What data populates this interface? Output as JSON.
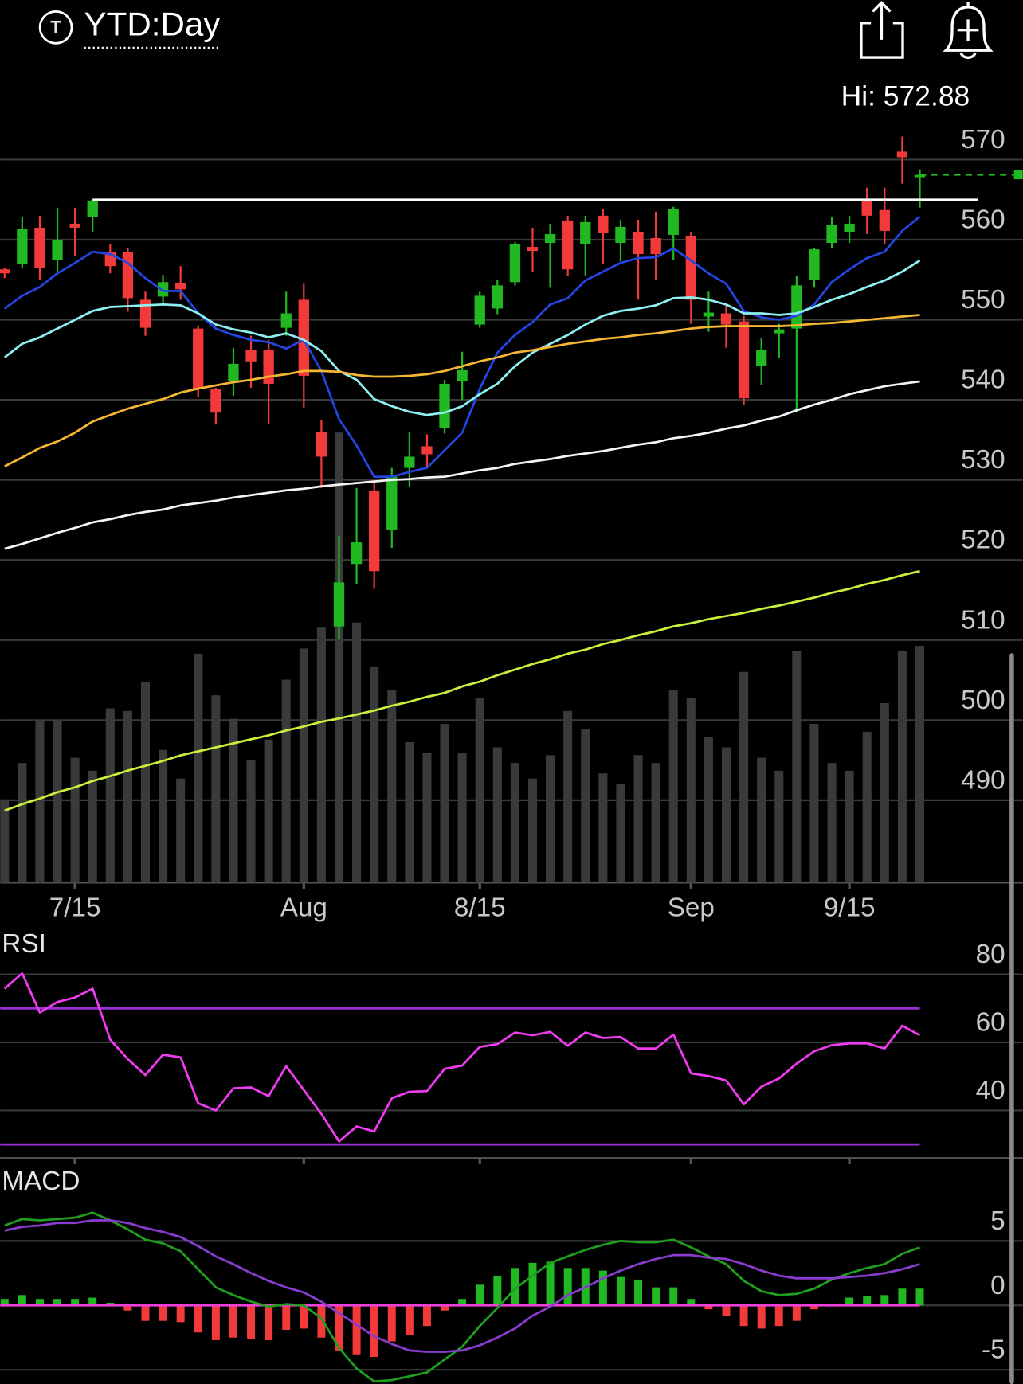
{
  "header": {
    "icon": "T",
    "title": "YTD:Day",
    "hi_label": "Hi: 572.88"
  },
  "chart_data": [
    {
      "type": "candlestick",
      "categories": [
        null,
        null,
        null,
        null,
        "7/15",
        null,
        null,
        null,
        null,
        null,
        null,
        null,
        null,
        null,
        null,
        null,
        null,
        "Aug",
        null,
        null,
        null,
        null,
        null,
        null,
        null,
        null,
        null,
        "8/15",
        null,
        null,
        null,
        null,
        null,
        null,
        null,
        null,
        null,
        null,
        null,
        "Sep",
        null,
        null,
        null,
        null,
        null,
        null,
        null,
        null,
        "9/15",
        null,
        null,
        null,
        null
      ],
      "open": [
        556.3,
        557,
        561.5,
        557.5,
        562,
        562.8,
        558.5,
        558.5,
        552.5,
        552.9,
        554.6,
        548.9,
        541.4,
        542.3,
        546.2,
        546.2,
        549,
        552.5,
        536,
        511.7,
        519.5,
        528.6,
        523.8,
        531.5,
        534.2,
        536.5,
        542.3,
        549.4,
        551.4,
        554.7,
        559.1,
        559.6,
        562.4,
        559.4,
        563,
        559.6,
        561,
        560.2,
        560.6,
        560.5,
        550.4,
        550.8,
        549.8,
        544.2,
        548.3,
        548.9,
        555,
        559.6,
        561,
        564.8,
        563.7,
        571,
        567.8
      ],
      "high": [
        556.5,
        562.8,
        563,
        564,
        564,
        565,
        559.5,
        559,
        553.5,
        555.6,
        556.7,
        549.3,
        541.5,
        546.5,
        548,
        547.5,
        553.5,
        554.5,
        537.5,
        523,
        529,
        530,
        531.5,
        536,
        535.7,
        542.5,
        546,
        553.5,
        555,
        559.7,
        561.5,
        562,
        563,
        563,
        563.8,
        562.5,
        562.5,
        563.5,
        564.1,
        561,
        553.5,
        552,
        550.5,
        547.7,
        549.5,
        555.5,
        559,
        562.8,
        563,
        566.5,
        566.5,
        572.88,
        568.8
      ],
      "low": [
        555.2,
        556.5,
        555,
        556,
        558,
        561,
        555.8,
        551,
        548,
        552,
        552.5,
        540.3,
        536.9,
        540.5,
        541.5,
        537,
        548,
        539,
        529,
        510,
        517,
        516.4,
        521.5,
        529.2,
        531.5,
        535.8,
        540,
        549,
        550.7,
        554.3,
        556,
        554,
        555.5,
        555.5,
        557,
        557.3,
        552.5,
        555,
        557.5,
        549.5,
        548.5,
        546.5,
        539.4,
        541.8,
        545.2,
        538.5,
        554,
        559,
        559.6,
        560.7,
        559.5,
        567,
        564
      ],
      "close": [
        555.8,
        561.3,
        556.5,
        560,
        561.5,
        564.9,
        556.7,
        552.7,
        549,
        554.7,
        553.8,
        541.4,
        538.4,
        544.5,
        544.8,
        542,
        550.8,
        543,
        532.9,
        517.2,
        522.2,
        518.6,
        530.4,
        532.9,
        533.2,
        542,
        543.7,
        553,
        554.3,
        559.5,
        558.6,
        560.7,
        556.3,
        562.2,
        560.8,
        561.6,
        558.2,
        558.2,
        563.8,
        552.5,
        550.9,
        549.4,
        540.2,
        546.2,
        548.8,
        554.3,
        558.8,
        561.8,
        562,
        563,
        561.1,
        570.3,
        568.1
      ],
      "up_color": "#22b822",
      "down_color": "#f23a3a",
      "volume": {
        "color": "#3a3a3a",
        "values": [
          32,
          46,
          62,
          62,
          48,
          43,
          67,
          66,
          77,
          51,
          40,
          88,
          72,
          63,
          47,
          55,
          78,
          90,
          98,
          173,
          100,
          83,
          74,
          54,
          50,
          61,
          50,
          71,
          52,
          46,
          40,
          49,
          66,
          59,
          42,
          38,
          49,
          46,
          74,
          71,
          56,
          52,
          81,
          48,
          43,
          89,
          61,
          46,
          43,
          58,
          69,
          89,
          91
        ]
      },
      "series": [
        {
          "color": "#2445e0",
          "values": [
            551.4,
            553.0,
            554.1,
            555.8,
            557.1,
            558.5,
            558.2,
            557.1,
            555.2,
            553.6,
            553.6,
            550.8,
            548.9,
            548.1,
            547.5,
            547.2,
            546.4,
            547.5,
            543.6,
            537.6,
            534.3,
            530.4,
            530.4,
            531.0,
            531.5,
            533.7,
            535.9,
            541.4,
            545.9,
            548.1,
            549.7,
            551.9,
            552.7,
            554.9,
            556.0,
            557.1,
            557.7,
            557.8,
            558.9,
            557.4,
            555.8,
            554.5,
            551.1,
            550.3,
            550.0,
            550.5,
            551.9,
            554.7,
            556.3,
            557.7,
            558.5,
            561.1,
            562.9
          ]
        },
        {
          "color": "#8ff0f0",
          "values": [
            545.3,
            547.0,
            547.8,
            548.9,
            550.0,
            551.1,
            551.6,
            551.7,
            551.8,
            551.9,
            551.8,
            550.8,
            549.4,
            548.8,
            548.4,
            547.8,
            548.3,
            547.5,
            546.1,
            543.6,
            542.5,
            540.1,
            539.2,
            538.5,
            538.1,
            538.4,
            539.2,
            540.7,
            542.0,
            544.2,
            545.9,
            547.0,
            548.1,
            549.4,
            550.5,
            551.1,
            551.4,
            551.8,
            552.7,
            552.8,
            552.5,
            551.9,
            550.8,
            550.8,
            550.6,
            550.8,
            551.6,
            552.5,
            553.2,
            554.1,
            554.9,
            556.0,
            557.4
          ]
        },
        {
          "color": "#f5b731",
          "values": [
            531.7,
            532.8,
            534.0,
            534.8,
            535.9,
            537.3,
            538.1,
            538.9,
            539.5,
            540.1,
            540.9,
            541.4,
            541.8,
            542.2,
            542.5,
            542.9,
            543.2,
            543.6,
            543.6,
            543.5,
            543.1,
            542.9,
            542.9,
            543.0,
            543.2,
            543.6,
            544.2,
            544.8,
            545.3,
            545.9,
            546.2,
            546.6,
            547.0,
            547.3,
            547.6,
            547.8,
            548.1,
            548.3,
            548.6,
            548.9,
            549.1,
            549.2,
            549.2,
            549.2,
            549.2,
            549.3,
            549.5,
            549.6,
            549.8,
            550.0,
            550.2,
            550.4,
            550.6
          ]
        },
        {
          "color": "#f4f4f4",
          "values": [
            521.4,
            522.0,
            522.7,
            523.4,
            524.0,
            524.7,
            525.1,
            525.6,
            526.0,
            526.3,
            526.8,
            527.1,
            527.4,
            527.8,
            528.1,
            528.4,
            528.7,
            528.9,
            529.2,
            529.4,
            529.6,
            529.8,
            530.0,
            530.1,
            530.3,
            530.4,
            530.8,
            531.2,
            531.5,
            532.0,
            532.3,
            532.6,
            533.0,
            533.3,
            533.6,
            534.0,
            534.4,
            534.7,
            535.2,
            535.5,
            535.9,
            536.4,
            536.8,
            537.4,
            537.9,
            538.7,
            539.4,
            540.0,
            540.7,
            541.2,
            541.7,
            542.0,
            542.3
          ]
        },
        {
          "color": "#c8f03c",
          "values": [
            488.7,
            489.5,
            490.2,
            491.0,
            491.6,
            492.4,
            493.0,
            493.7,
            494.3,
            494.9,
            495.6,
            496.1,
            496.6,
            497.1,
            497.6,
            498.1,
            498.7,
            499.2,
            499.8,
            500.2,
            500.7,
            501.2,
            501.8,
            502.3,
            502.9,
            503.4,
            504.2,
            504.8,
            505.6,
            506.3,
            507.0,
            507.6,
            508.3,
            508.8,
            509.5,
            510.0,
            510.6,
            511.1,
            511.7,
            512.1,
            512.6,
            513.0,
            513.4,
            513.9,
            514.3,
            514.8,
            515.3,
            515.9,
            516.4,
            517.0,
            517.5,
            518.1,
            518.6
          ]
        }
      ],
      "hline": 565,
      "hline_color": "#ffffff",
      "last_color": "#22b822",
      "ylim": [
        479.7,
        573.4
      ],
      "yticks": [
        490,
        500,
        510,
        520,
        530,
        540,
        550,
        560,
        570
      ],
      "grid": true
    },
    {
      "type": "line",
      "title": "RSI",
      "color": "#f03cf0",
      "values": [
        75.8,
        80.3,
        68.8,
        71.9,
        73.2,
        75.8,
        60.8,
        55.1,
        50.4,
        56.4,
        55.6,
        42.1,
        40.0,
        46.5,
        46.8,
        44.2,
        53.0,
        46.0,
        39.0,
        30.9,
        35.3,
        33.8,
        43.6,
        45.5,
        45.7,
        52.2,
        53.2,
        58.7,
        59.5,
        62.9,
        62.1,
        63.1,
        59.0,
        62.9,
        61.3,
        61.6,
        58.2,
        58.2,
        62.3,
        50.9,
        50.1,
        48.8,
        41.8,
        47.0,
        49.4,
        53.8,
        57.4,
        59.2,
        59.7,
        59.7,
        58.2,
        64.9,
        62.1
      ],
      "levels": [
        70,
        30
      ],
      "level_color": "#9a2fd6",
      "ylim": [
        26,
        91.4
      ],
      "yticks": [
        40,
        60,
        80
      ],
      "grid": true
    },
    {
      "type": "macd",
      "title": "MACD",
      "series": [
        {
          "color": "#1f9e1f",
          "values": [
            6.2,
            6.7,
            6.6,
            6.7,
            6.8,
            7.2,
            6.6,
            5.9,
            5.1,
            4.8,
            4.2,
            2.8,
            1.4,
            0.8,
            0.3,
            -0.1,
            0.1,
            0,
            -1.0,
            -3.3,
            -4.9,
            -5.9,
            -5.8,
            -5.5,
            -5.2,
            -4.2,
            -3.2,
            -1.6,
            -0.2,
            1.3,
            2.3,
            3.3,
            3.8,
            4.3,
            4.7,
            5.0,
            4.9,
            4.9,
            5.1,
            4.5,
            3.8,
            3.2,
            1.9,
            1.1,
            0.8,
            0.9,
            1.3,
            2.0,
            2.5,
            2.9,
            3.2,
            4.0,
            4.5
          ]
        },
        {
          "color": "#8a3ccf",
          "values": [
            5.8,
            6.1,
            6.2,
            6.4,
            6.4,
            6.6,
            6.6,
            6.4,
            6.0,
            5.7,
            5.3,
            4.6,
            3.8,
            3.2,
            2.5,
            1.9,
            1.4,
            1.0,
            0.3,
            -0.6,
            -1.5,
            -2.4,
            -3.0,
            -3.5,
            -3.6,
            -3.6,
            -3.5,
            -3.1,
            -2.5,
            -1.8,
            -0.8,
            -0.1,
            0.8,
            1.4,
            2.1,
            2.7,
            3.2,
            3.6,
            3.9,
            3.9,
            3.7,
            3.6,
            3.2,
            2.7,
            2.3,
            2.1,
            2.1,
            2.1,
            2.2,
            2.3,
            2.5,
            2.8,
            3.2
          ]
        }
      ],
      "histogram": {
        "up_color": "#22b822",
        "down_color": "#f23a3a",
        "values": [
          0.5,
          0.8,
          0.5,
          0.5,
          0.5,
          0.6,
          0.2,
          -0.4,
          -1.2,
          -1.2,
          -1.3,
          -2.1,
          -2.7,
          -2.5,
          -2.6,
          -2.7,
          -1.9,
          -1.8,
          -2.5,
          -3.5,
          -3.8,
          -4.0,
          -2.8,
          -2.3,
          -1.6,
          -0.4,
          0.5,
          1.6,
          2.3,
          2.9,
          3.3,
          3.4,
          2.9,
          2.9,
          2.7,
          2.2,
          2.0,
          1.4,
          1.4,
          0.5,
          -0.3,
          -0.8,
          -1.6,
          -1.8,
          -1.6,
          -1.2,
          -0.3,
          0.1,
          0.6,
          0.7,
          0.8,
          1.3,
          1.3
        ]
      },
      "zero_color": "#ee3fd8",
      "ylim": [
        -6.1,
        10.2
      ],
      "yticks": [
        -5,
        0,
        5
      ],
      "grid": true
    }
  ]
}
